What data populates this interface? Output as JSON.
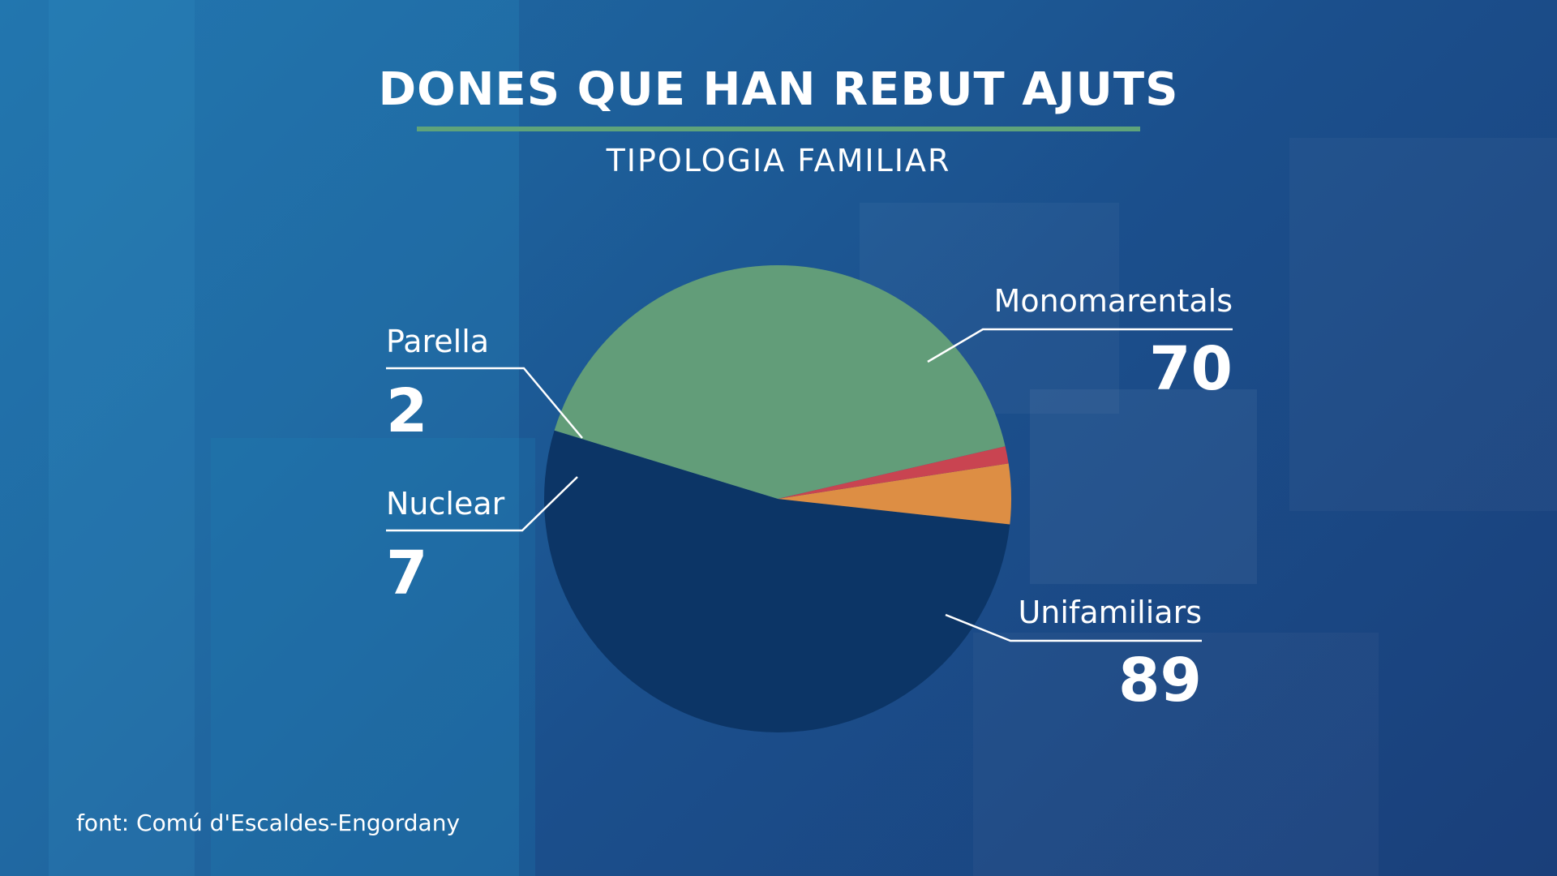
{
  "title": "DONES QUE HAN REBUT AJUTS",
  "subtitle": "TIPOLOGIA FAMILIAR",
  "source": "font: Comú d'Escaldes-Engordany",
  "colors": {
    "accent_rule": "#5fa37a",
    "Monomarentals": "#629d79",
    "Unifamiliars": "#0c3566",
    "Nuclear": "#dd8e44",
    "Parella": "#c94451"
  },
  "chart_data": {
    "type": "pie",
    "title": "DONES QUE HAN REBUT AJUTS",
    "subtitle": "TIPOLOGIA FAMILIAR",
    "slices": [
      {
        "label": "Monomarentals",
        "value": 70,
        "color": "#629d79"
      },
      {
        "label": "Unifamiliars",
        "value": 89,
        "color": "#0c3566"
      },
      {
        "label": "Nuclear",
        "value": 7,
        "color": "#dd8e44"
      },
      {
        "label": "Parella",
        "value": 2,
        "color": "#c94451"
      }
    ]
  }
}
